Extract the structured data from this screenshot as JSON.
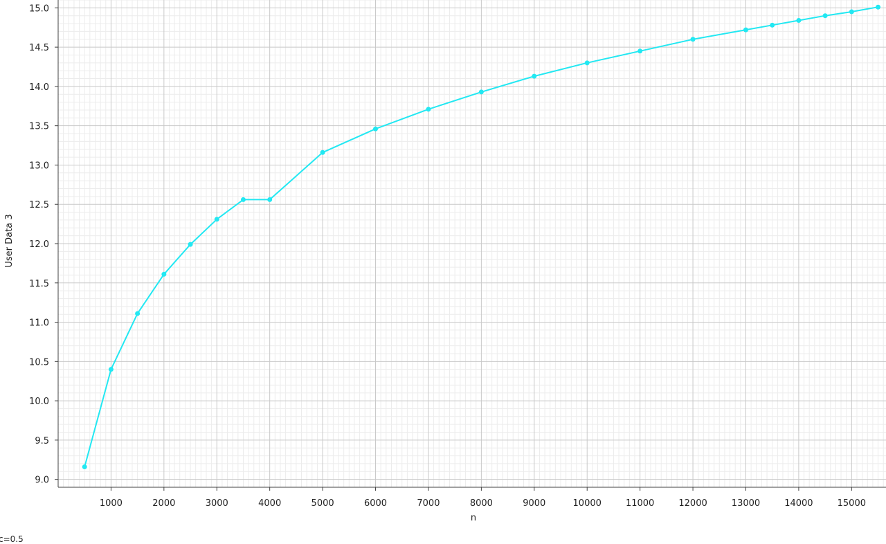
{
  "colors": {
    "series": "#22e8f2",
    "major_grid": "#c8c8c8",
    "minor_grid": "#ececec",
    "axis": "#404040",
    "background": "#ffffff"
  },
  "legend_note": "c=0.5",
  "chart_data": {
    "type": "line",
    "title": "",
    "xlabel": "n",
    "ylabel": "User Data 3",
    "xlim": [
      0,
      15650
    ],
    "ylim": [
      8.9,
      15.1
    ],
    "grid": true,
    "x_ticks": [
      1000,
      2000,
      3000,
      4000,
      5000,
      6000,
      7000,
      8000,
      9000,
      10000,
      11000,
      12000,
      13000,
      14000,
      15000
    ],
    "y_ticks": [
      "9.0",
      "9.5",
      "10.0",
      "10.5",
      "11.0",
      "11.5",
      "12.0",
      "12.5",
      "13.0",
      "13.5",
      "14.0",
      "14.5",
      "15.0"
    ],
    "series": [
      {
        "x": [
          500,
          1000,
          1500,
          2000,
          2500,
          3000,
          3500,
          4000,
          5000,
          6000,
          7000,
          8000,
          9000,
          10000,
          11000,
          12000,
          13000,
          13500,
          14000,
          14500,
          15000,
          15500
        ],
        "values": [
          9.16,
          10.4,
          11.11,
          11.61,
          11.99,
          12.31,
          12.56,
          12.56,
          13.16,
          13.46,
          13.71,
          13.93,
          14.13,
          14.3,
          14.45,
          14.6,
          14.72,
          14.78,
          14.84,
          14.9,
          14.95,
          15.01
        ]
      }
    ]
  }
}
